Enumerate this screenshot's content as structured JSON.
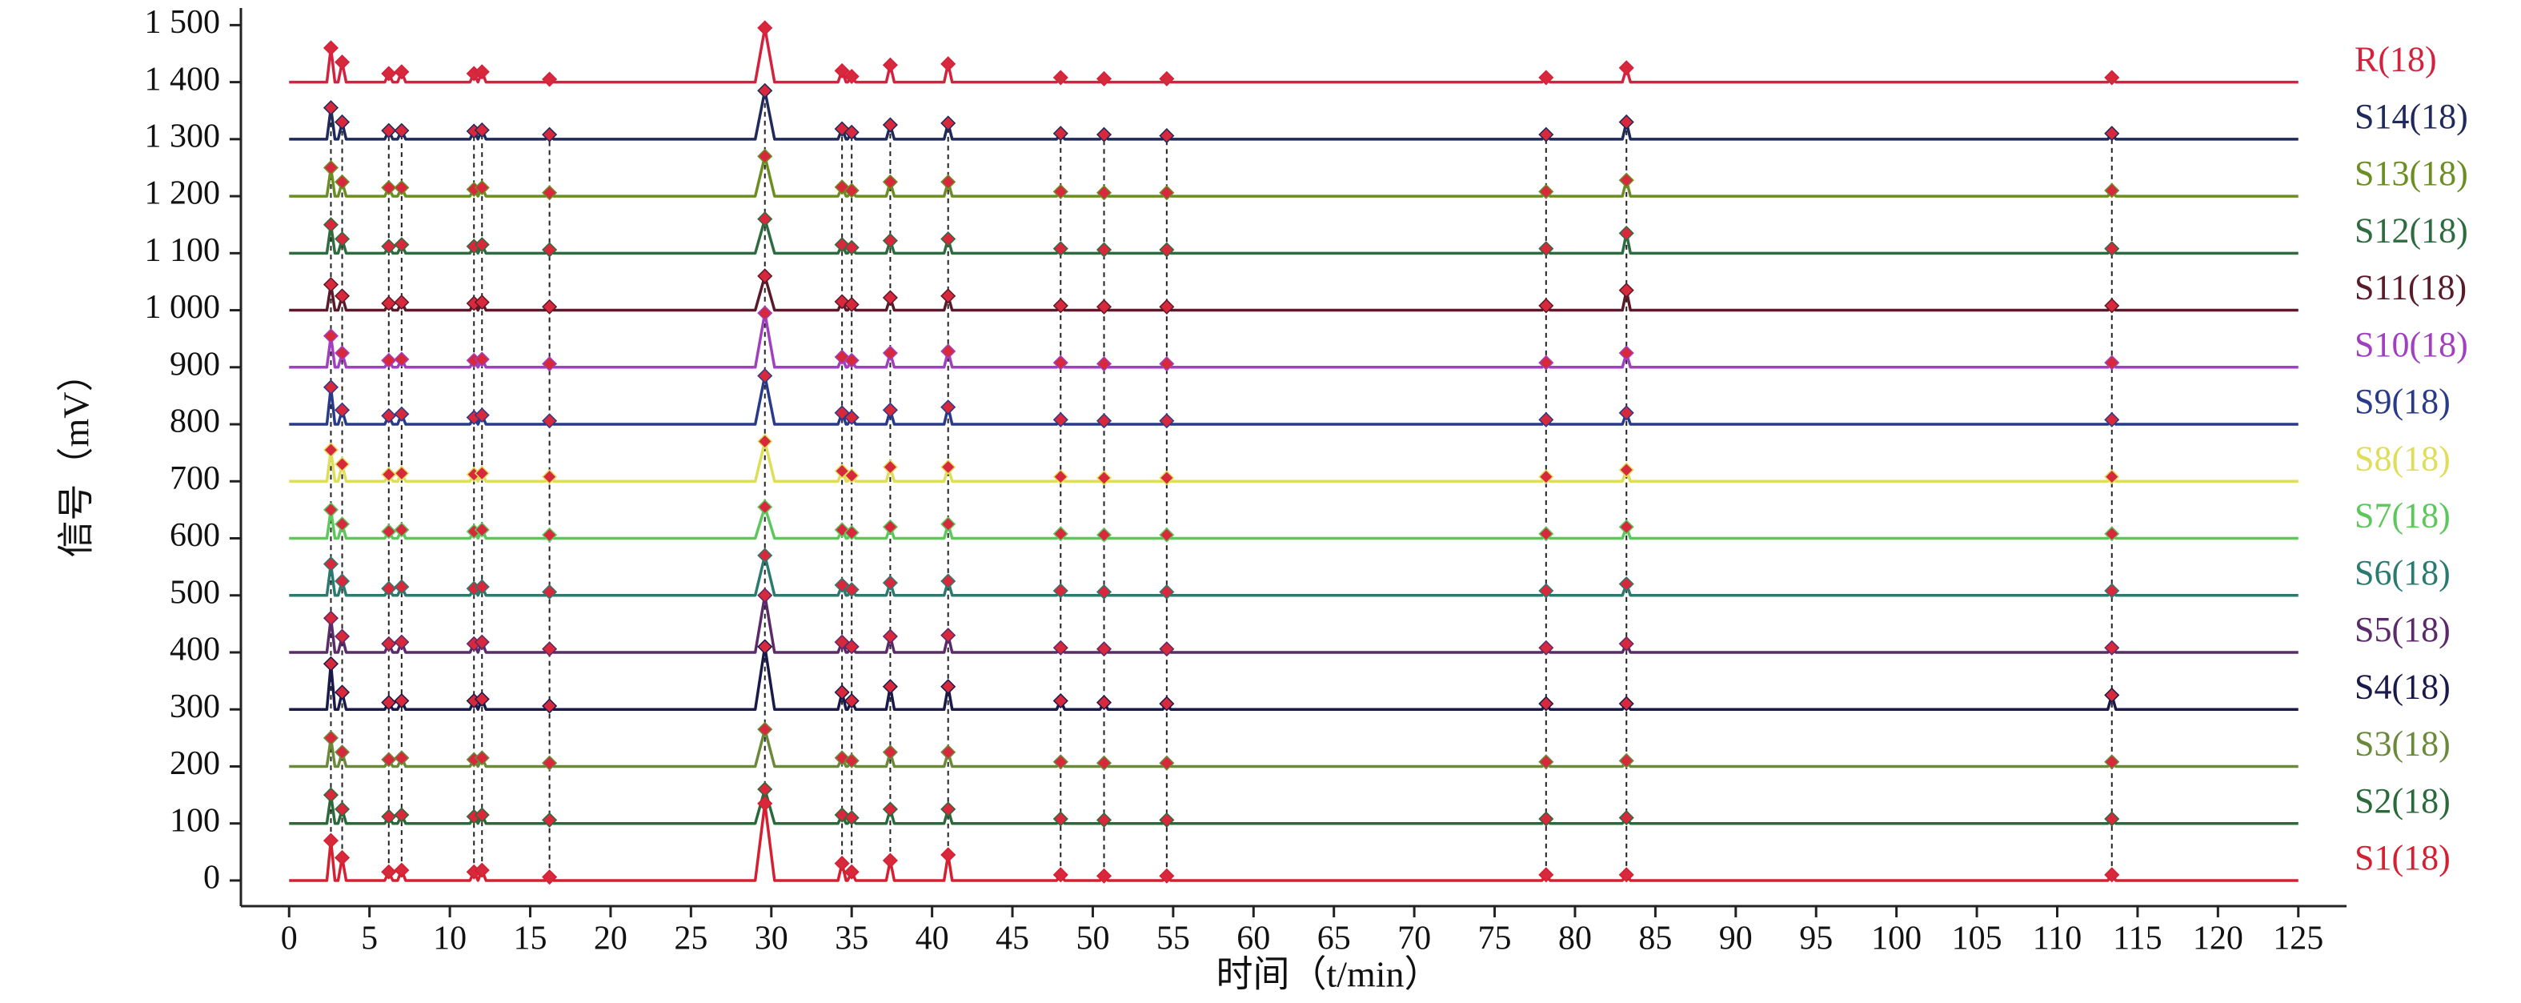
{
  "chart_data": {
    "type": "line",
    "x_label": "时间（t/min）",
    "y_label": "信号（mV）",
    "xlim": [
      -3,
      128
    ],
    "ylim": [
      -45,
      1530
    ],
    "xticks": [
      0,
      5,
      10,
      15,
      20,
      25,
      30,
      35,
      40,
      45,
      50,
      55,
      60,
      65,
      70,
      75,
      80,
      85,
      90,
      95,
      100,
      105,
      110,
      115,
      120,
      125
    ],
    "yticks": [
      0,
      100,
      200,
      300,
      400,
      500,
      600,
      700,
      800,
      900,
      {
        "value": 1000,
        "label": "1 000"
      },
      {
        "value": 1100,
        "label": "1 100"
      },
      {
        "value": 1200,
        "label": "1 200"
      },
      {
        "value": 1300,
        "label": "1 300"
      },
      {
        "value": 1400,
        "label": "1 400"
      },
      {
        "value": 1500,
        "label": "1 500"
      }
    ],
    "grid": false,
    "marker_color": "#d8283c",
    "x": [
      0,
      2.35,
      2.6,
      2.85,
      3.05,
      3.3,
      3.55,
      5.95,
      6.2,
      6.45,
      6.75,
      7.0,
      7.25,
      11.25,
      11.5,
      11.75,
      11.75,
      12.0,
      12.25,
      15.95,
      16.2,
      16.45,
      29.0,
      29.6,
      30.2,
      34.15,
      34.4,
      34.65,
      34.75,
      35.0,
      35.25,
      37.15,
      37.4,
      37.65,
      40.75,
      41.0,
      41.25,
      47.75,
      48.0,
      48.25,
      50.45,
      50.7,
      50.95,
      54.35,
      54.6,
      54.85,
      77.95,
      78.2,
      78.45,
      82.95,
      83.2,
      83.45,
      113.15,
      113.4,
      113.65,
      125
    ],
    "series": [
      {
        "name": "R(18)",
        "color": "#d4213d",
        "values": [
          1400,
          1400,
          1460,
          1400,
          1400,
          1435,
          1400,
          1400,
          1415,
          1400,
          1400,
          1418,
          1400,
          1400,
          1415,
          1400,
          1400,
          1418,
          1400,
          1400,
          1405,
          1400,
          1400,
          1495,
          1400,
          1400,
          1420,
          1400,
          1400,
          1410,
          1400,
          1400,
          1430,
          1400,
          1400,
          1432,
          1400,
          1400,
          1408,
          1400,
          1400,
          1406,
          1400,
          1400,
          1406,
          1400,
          1400,
          1408,
          1400,
          1400,
          1425,
          1400,
          1400,
          1408,
          1400,
          1400
        ]
      },
      {
        "name": "S14(18)",
        "color": "#1f2a5a",
        "values": [
          1300,
          1300,
          1355,
          1300,
          1300,
          1330,
          1300,
          1300,
          1315,
          1300,
          1300,
          1315,
          1300,
          1300,
          1314,
          1300,
          1300,
          1316,
          1300,
          1300,
          1308,
          1300,
          1300,
          1385,
          1300,
          1300,
          1318,
          1300,
          1300,
          1312,
          1300,
          1300,
          1325,
          1300,
          1300,
          1328,
          1300,
          1300,
          1310,
          1300,
          1300,
          1308,
          1300,
          1300,
          1306,
          1300,
          1300,
          1308,
          1300,
          1300,
          1330,
          1300,
          1300,
          1310,
          1300,
          1300
        ]
      },
      {
        "name": "S13(18)",
        "color": "#6b8e23",
        "values": [
          1200,
          1200,
          1250,
          1200,
          1200,
          1225,
          1200,
          1200,
          1215,
          1200,
          1200,
          1215,
          1200,
          1200,
          1212,
          1200,
          1200,
          1215,
          1200,
          1200,
          1206,
          1200,
          1200,
          1270,
          1200,
          1200,
          1216,
          1200,
          1200,
          1210,
          1200,
          1200,
          1225,
          1200,
          1200,
          1225,
          1200,
          1200,
          1208,
          1200,
          1200,
          1206,
          1200,
          1200,
          1206,
          1200,
          1200,
          1208,
          1200,
          1200,
          1228,
          1200,
          1200,
          1210,
          1200,
          1200
        ]
      },
      {
        "name": "S12(18)",
        "color": "#2e6b3f",
        "values": [
          1100,
          1100,
          1150,
          1100,
          1100,
          1125,
          1100,
          1100,
          1112,
          1100,
          1100,
          1115,
          1100,
          1100,
          1112,
          1100,
          1100,
          1115,
          1100,
          1100,
          1106,
          1100,
          1100,
          1160,
          1100,
          1100,
          1115,
          1100,
          1100,
          1110,
          1100,
          1100,
          1122,
          1100,
          1100,
          1125,
          1100,
          1100,
          1108,
          1100,
          1100,
          1106,
          1100,
          1100,
          1106,
          1100,
          1100,
          1108,
          1100,
          1100,
          1135,
          1100,
          1100,
          1108,
          1100,
          1100
        ]
      },
      {
        "name": "S11(18)",
        "color": "#5a1a2a",
        "values": [
          1000,
          1000,
          1045,
          1000,
          1000,
          1025,
          1000,
          1000,
          1012,
          1000,
          1000,
          1014,
          1000,
          1000,
          1012,
          1000,
          1000,
          1014,
          1000,
          1000,
          1006,
          1000,
          1000,
          1060,
          1000,
          1000,
          1015,
          1000,
          1000,
          1010,
          1000,
          1000,
          1022,
          1000,
          1000,
          1025,
          1000,
          1000,
          1008,
          1000,
          1000,
          1006,
          1000,
          1000,
          1006,
          1000,
          1000,
          1008,
          1000,
          1000,
          1035,
          1000,
          1000,
          1008,
          1000,
          1000
        ]
      },
      {
        "name": "S10(18)",
        "color": "#a040c0",
        "values": [
          900,
          900,
          955,
          900,
          900,
          925,
          900,
          900,
          912,
          900,
          900,
          914,
          900,
          900,
          912,
          900,
          900,
          914,
          900,
          900,
          906,
          900,
          900,
          995,
          900,
          900,
          918,
          900,
          900,
          912,
          900,
          900,
          925,
          900,
          900,
          928,
          900,
          900,
          908,
          900,
          900,
          906,
          900,
          900,
          906,
          900,
          900,
          908,
          900,
          900,
          925,
          900,
          900,
          908,
          900,
          900
        ]
      },
      {
        "name": "S9(18)",
        "color": "#2a3a8a",
        "values": [
          800,
          800,
          865,
          800,
          800,
          825,
          800,
          800,
          815,
          800,
          800,
          818,
          800,
          800,
          812,
          800,
          800,
          816,
          800,
          800,
          806,
          800,
          800,
          885,
          800,
          800,
          820,
          800,
          800,
          812,
          800,
          800,
          825,
          800,
          800,
          830,
          800,
          800,
          808,
          800,
          800,
          806,
          800,
          800,
          806,
          800,
          800,
          808,
          800,
          800,
          820,
          800,
          800,
          808,
          800,
          800
        ]
      },
      {
        "name": "S8(18)",
        "color": "#dede5a",
        "values": [
          700,
          700,
          755,
          700,
          700,
          730,
          700,
          700,
          712,
          700,
          700,
          714,
          700,
          700,
          712,
          700,
          700,
          714,
          700,
          700,
          708,
          700,
          700,
          770,
          700,
          700,
          718,
          700,
          700,
          710,
          700,
          700,
          725,
          700,
          700,
          725,
          700,
          700,
          708,
          700,
          700,
          706,
          700,
          700,
          706,
          700,
          700,
          708,
          700,
          700,
          720,
          700,
          700,
          708,
          700,
          700
        ]
      },
      {
        "name": "S7(18)",
        "color": "#5cc85c",
        "values": [
          600,
          600,
          650,
          600,
          600,
          625,
          600,
          600,
          612,
          600,
          600,
          615,
          600,
          600,
          612,
          600,
          600,
          615,
          600,
          600,
          606,
          600,
          600,
          655,
          600,
          600,
          615,
          600,
          600,
          610,
          600,
          600,
          620,
          600,
          600,
          625,
          600,
          600,
          608,
          600,
          600,
          606,
          600,
          600,
          606,
          600,
          600,
          608,
          600,
          600,
          620,
          600,
          600,
          608,
          600,
          600
        ]
      },
      {
        "name": "S6(18)",
        "color": "#2a7a70",
        "values": [
          500,
          500,
          555,
          500,
          500,
          525,
          500,
          500,
          512,
          500,
          500,
          515,
          500,
          500,
          512,
          500,
          500,
          515,
          500,
          500,
          506,
          500,
          500,
          570,
          500,
          500,
          518,
          500,
          500,
          510,
          500,
          500,
          522,
          500,
          500,
          525,
          500,
          500,
          508,
          500,
          500,
          506,
          500,
          500,
          506,
          500,
          500,
          508,
          500,
          500,
          520,
          500,
          500,
          508,
          500,
          500
        ]
      },
      {
        "name": "S5(18)",
        "color": "#5a2a6a",
        "values": [
          400,
          400,
          460,
          400,
          400,
          428,
          400,
          400,
          415,
          400,
          400,
          418,
          400,
          400,
          415,
          400,
          400,
          418,
          400,
          400,
          406,
          400,
          400,
          500,
          400,
          400,
          418,
          400,
          400,
          410,
          400,
          400,
          428,
          400,
          400,
          430,
          400,
          400,
          408,
          400,
          400,
          406,
          400,
          400,
          406,
          400,
          400,
          408,
          400,
          400,
          415,
          400,
          400,
          408,
          400,
          400
        ]
      },
      {
        "name": "S4(18)",
        "color": "#1a1a4a",
        "values": [
          300,
          300,
          380,
          300,
          300,
          330,
          300,
          300,
          312,
          300,
          300,
          315,
          300,
          300,
          315,
          300,
          300,
          318,
          300,
          300,
          306,
          300,
          300,
          410,
          300,
          300,
          330,
          300,
          300,
          315,
          300,
          300,
          340,
          300,
          300,
          340,
          300,
          300,
          315,
          300,
          300,
          312,
          300,
          300,
          310,
          300,
          300,
          310,
          300,
          300,
          310,
          300,
          300,
          325,
          300,
          300
        ]
      },
      {
        "name": "S3(18)",
        "color": "#6a8a3a",
        "values": [
          200,
          200,
          250,
          200,
          200,
          225,
          200,
          200,
          212,
          200,
          200,
          215,
          200,
          200,
          212,
          200,
          200,
          215,
          200,
          200,
          206,
          200,
          200,
          265,
          200,
          200,
          215,
          200,
          200,
          210,
          200,
          200,
          225,
          200,
          200,
          225,
          200,
          200,
          208,
          200,
          200,
          206,
          200,
          200,
          206,
          200,
          200,
          208,
          200,
          200,
          210,
          200,
          200,
          208,
          200,
          200
        ]
      },
      {
        "name": "S2(18)",
        "color": "#2a6a3a",
        "values": [
          100,
          100,
          150,
          100,
          100,
          125,
          100,
          100,
          112,
          100,
          100,
          115,
          100,
          100,
          112,
          100,
          100,
          115,
          100,
          100,
          106,
          100,
          100,
          160,
          100,
          100,
          115,
          100,
          100,
          110,
          100,
          100,
          125,
          100,
          100,
          125,
          100,
          100,
          108,
          100,
          100,
          106,
          100,
          100,
          106,
          100,
          100,
          108,
          100,
          100,
          110,
          100,
          100,
          108,
          100,
          100
        ]
      },
      {
        "name": "S1(18)",
        "color": "#d42030",
        "values": [
          0,
          0,
          70,
          0,
          0,
          40,
          0,
          0,
          15,
          0,
          0,
          18,
          0,
          0,
          15,
          0,
          0,
          18,
          0,
          0,
          6,
          0,
          0,
          135,
          0,
          0,
          30,
          0,
          0,
          15,
          0,
          0,
          35,
          0,
          0,
          45,
          0,
          0,
          10,
          0,
          0,
          8,
          0,
          0,
          8,
          0,
          0,
          10,
          0,
          0,
          10,
          0,
          0,
          10,
          0,
          0
        ]
      }
    ]
  }
}
